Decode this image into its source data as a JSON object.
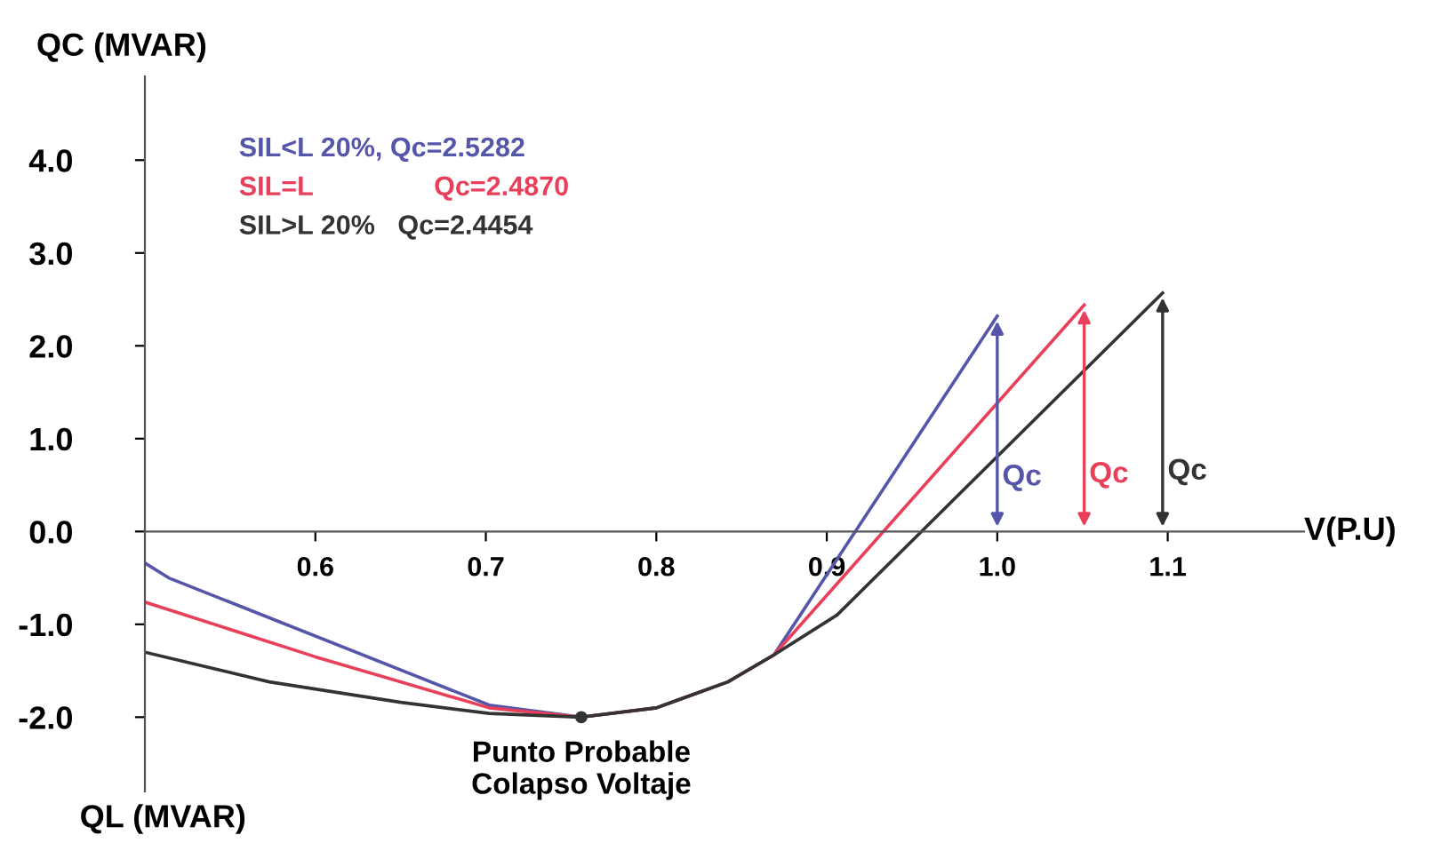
{
  "chart_data": {
    "type": "line",
    "ylabel": "QC (MVAR)",
    "xlabel": "V(P.U)",
    "xlim": [
      0.5,
      1.18
    ],
    "ylim": [
      -2.8,
      4.9
    ],
    "xticks": [
      0.6,
      0.7,
      0.8,
      0.9,
      {
        "value": 1.0,
        "label": "1.0"
      },
      1.1
    ],
    "yticks": [
      {
        "value": -2,
        "label": "-2.0"
      },
      {
        "value": -1,
        "label": "-1.0"
      },
      {
        "value": 0,
        "label": "0.0"
      },
      {
        "value": 1,
        "label": "1.0"
      },
      {
        "value": 2,
        "label": "2.0"
      },
      {
        "value": 3,
        "label": "3.0"
      },
      {
        "value": 4,
        "label": "4.0"
      }
    ],
    "grid": false,
    "legend": "top left",
    "marker": "none",
    "line_style": "solid",
    "series": [
      {
        "name": "SIL<L 20%, Qc=2.5282",
        "color": "#5555aa",
        "x": [
          0.5,
          0.514,
          0.702,
          0.756,
          0.8,
          0.842,
          0.869,
          1.0
        ],
        "values": [
          -0.34,
          -0.5,
          -1.87,
          -2.0,
          -1.9,
          -1.62,
          -1.33,
          2.32
        ]
      },
      {
        "name": "SIL=L                Qc=2.4870",
        "color": "#e8405a",
        "x": [
          0.5,
          0.6,
          0.702,
          0.756,
          0.8,
          0.842,
          0.869,
          1.051
        ],
        "values": [
          -0.76,
          -1.35,
          -1.9,
          -2.0,
          -1.9,
          -1.62,
          -1.33,
          2.44
        ]
      },
      {
        "name": "SIL>L 20%   Qc=2.4454",
        "color": "#333333",
        "x": [
          0.5,
          0.573,
          0.65,
          0.702,
          0.756,
          0.8,
          0.842,
          0.869,
          0.906,
          1.097
        ],
        "values": [
          -1.3,
          -1.62,
          -1.84,
          -1.96,
          -2.0,
          -1.9,
          -1.62,
          -1.33,
          -0.9,
          2.57
        ]
      }
    ],
    "annotations": [
      {
        "text": "Qc",
        "x": 1.0,
        "y": 2.32
      },
      {
        "text": "Qc",
        "x": 1.051,
        "y": 2.44
      },
      {
        "text": "Qc",
        "x": 1.097,
        "y": 2.57
      },
      {
        "text": "Punto Probable\nColapso Voltaje",
        "x": 0.756,
        "y": -2.0
      },
      "QL (MVAR)"
    ]
  }
}
